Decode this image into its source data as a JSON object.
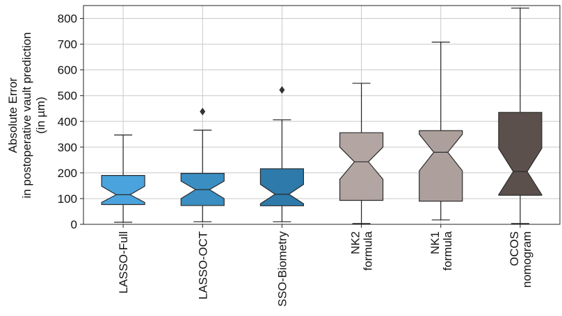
{
  "chart_data": {
    "type": "boxplot",
    "ylabel_lines": [
      "Absolute Error",
      "in postoperative vault prediction",
      "(in µm)"
    ],
    "ylim": [
      0,
      850
    ],
    "yticks": [
      0,
      100,
      200,
      300,
      400,
      500,
      600,
      700,
      800
    ],
    "grid": true,
    "notched": true,
    "categories": [
      {
        "label": [
          "LASSO-Full"
        ],
        "color": "#4aa3dc",
        "whisker_low": 8,
        "q1": 77,
        "median": 115,
        "q3": 190,
        "whisker_high": 347,
        "notch_low": 85,
        "notch_high": 148,
        "outliers": []
      },
      {
        "label": [
          "LASSO-OCT"
        ],
        "color": "#3a8ec2",
        "whisker_low": 10,
        "q1": 73,
        "median": 135,
        "q3": 198,
        "whisker_high": 366,
        "notch_low": 100,
        "notch_high": 168,
        "outliers": [
          438
        ]
      },
      {
        "label": [
          "SSO-Biometry"
        ],
        "color": "#2e7aaa",
        "whisker_low": 10,
        "q1": 72,
        "median": 117,
        "q3": 216,
        "whisker_high": 406,
        "notch_low": 80,
        "notch_high": 155,
        "outliers": [
          522
        ]
      },
      {
        "label": [
          "NK2",
          "formula"
        ],
        "color": "#b3a6a2",
        "whisker_low": 3,
        "q1": 93,
        "median": 243,
        "q3": 356,
        "whisker_high": 548,
        "notch_low": 175,
        "notch_high": 300,
        "outliers": []
      },
      {
        "label": [
          "NK1",
          "formula"
        ],
        "color": "#ada09c",
        "whisker_low": 17,
        "q1": 90,
        "median": 280,
        "q3": 364,
        "whisker_high": 708,
        "notch_low": 208,
        "notch_high": 350,
        "outliers": []
      },
      {
        "label": [
          "OCOS",
          "nomogram"
        ],
        "color": "#5b504b",
        "whisker_low": 3,
        "q1": 113,
        "median": 205,
        "q3": 435,
        "whisker_high": 840,
        "notch_low": 115,
        "notch_high": 295,
        "outliers": []
      }
    ]
  }
}
